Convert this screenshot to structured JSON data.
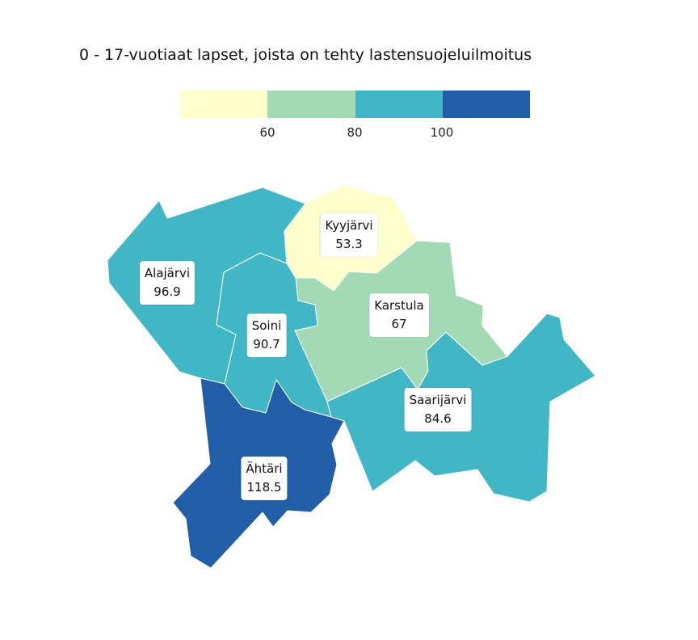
{
  "title": "0 - 17-vuotiaat lapset, joista on tehty lastensuojeluilmoitus",
  "legend": {
    "bins": [
      {
        "color": "#ffffcc"
      },
      {
        "color": "#a1dab4"
      },
      {
        "color": "#41b6c4"
      },
      {
        "color": "#225ea8"
      }
    ],
    "ticks": [
      "60",
      "80",
      "100"
    ]
  },
  "regions": [
    {
      "id": "alajarvi",
      "name": "Alajärvi",
      "value": "96.9",
      "color": "#41b6c4"
    },
    {
      "id": "kyyjarvi",
      "name": "Kyyjärvi",
      "value": "53.3",
      "color": "#ffffcc"
    },
    {
      "id": "karstula",
      "name": "Karstula",
      "value": "67",
      "color": "#a1dab4"
    },
    {
      "id": "soini",
      "name": "Soini",
      "value": "90.7",
      "color": "#41b6c4"
    },
    {
      "id": "saarijarvi",
      "name": "Saarijärvi",
      "value": "84.6",
      "color": "#41b6c4"
    },
    {
      "id": "ahtari",
      "name": "Ähtäri",
      "value": "118.5",
      "color": "#225ea8"
    }
  ]
}
